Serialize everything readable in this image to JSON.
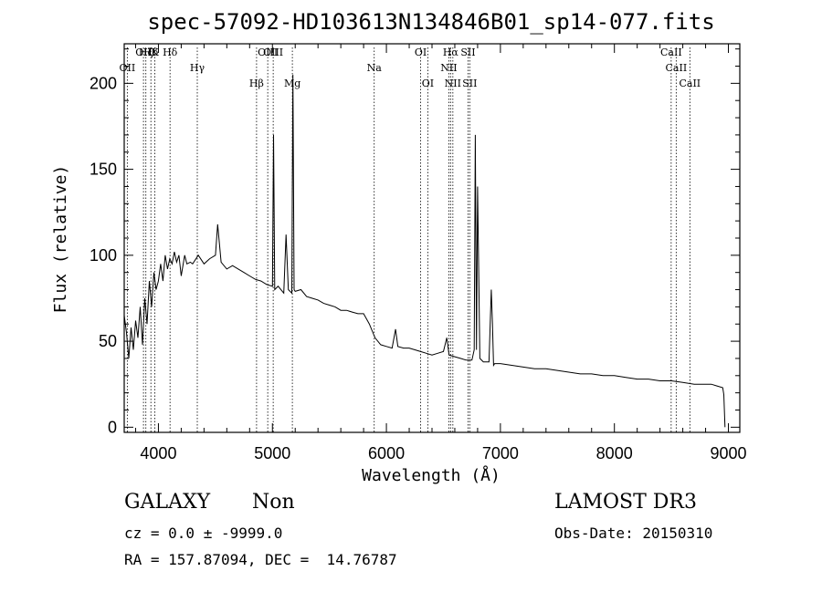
{
  "chart_data": {
    "type": "line",
    "title": "spec-57092-HD103613N134846B01_sp14-077.fits",
    "xlabel": "Wavelength (Å)",
    "ylabel": "Flux (relative)",
    "xlim": [
      3700,
      9100
    ],
    "ylim": [
      -3,
      223
    ],
    "xticks": [
      4000,
      5000,
      6000,
      7000,
      8000,
      9000
    ],
    "yticks": [
      0,
      50,
      100,
      150,
      200
    ],
    "series": [
      {
        "name": "spectrum",
        "x": [
          3700,
          3720,
          3740,
          3760,
          3780,
          3800,
          3820,
          3840,
          3860,
          3880,
          3900,
          3920,
          3940,
          3960,
          3980,
          4000,
          4020,
          4040,
          4060,
          4080,
          4100,
          4120,
          4140,
          4160,
          4180,
          4200,
          4230,
          4250,
          4280,
          4300,
          4350,
          4400,
          4450,
          4500,
          4520,
          4550,
          4600,
          4650,
          4700,
          4750,
          4800,
          4850,
          4900,
          4950,
          5000,
          5010,
          5020,
          5050,
          5100,
          5120,
          5140,
          5170,
          5180,
          5190,
          5200,
          5250,
          5300,
          5350,
          5400,
          5450,
          5500,
          5550,
          5600,
          5650,
          5700,
          5750,
          5800,
          5850,
          5900,
          5950,
          6000,
          6050,
          6080,
          6100,
          6150,
          6200,
          6250,
          6300,
          6350,
          6400,
          6450,
          6500,
          6530,
          6550,
          6600,
          6650,
          6700,
          6750,
          6770,
          6780,
          6790,
          6800,
          6820,
          6850,
          6900,
          6920,
          6930,
          6940,
          6950,
          7000,
          7100,
          7200,
          7300,
          7400,
          7500,
          7600,
          7700,
          7800,
          7900,
          8000,
          8100,
          8200,
          8300,
          8400,
          8500,
          8600,
          8700,
          8800,
          8850,
          8900,
          8950,
          8960,
          8970
        ],
        "values": [
          65,
          55,
          40,
          58,
          45,
          62,
          52,
          70,
          48,
          75,
          60,
          85,
          70,
          90,
          80,
          85,
          95,
          85,
          100,
          92,
          98,
          95,
          102,
          96,
          100,
          88,
          100,
          95,
          96,
          95,
          100,
          95,
          98,
          100,
          118,
          96,
          92,
          94,
          92,
          90,
          88,
          86,
          85,
          83,
          82,
          170,
          80,
          82,
          78,
          112,
          80,
          78,
          205,
          80,
          79,
          80,
          76,
          75,
          74,
          72,
          71,
          70,
          68,
          68,
          67,
          66,
          66,
          60,
          52,
          48,
          47,
          46,
          57,
          47,
          46,
          46,
          45,
          44,
          43,
          42,
          43,
          44,
          52,
          42,
          41,
          40,
          39,
          39,
          45,
          170,
          45,
          140,
          40,
          38,
          38,
          80,
          60,
          36,
          37,
          37,
          36,
          35,
          34,
          34,
          33,
          32,
          31,
          31,
          30,
          30,
          29,
          28,
          28,
          27,
          27,
          26,
          25,
          25,
          25,
          24,
          23,
          19,
          0
        ]
      }
    ],
    "line_markers": [
      {
        "x": 3727,
        "label": "OII",
        "row": 1
      },
      {
        "x": 3869,
        "label": "OII",
        "row": 0
      },
      {
        "x": 3890,
        "label": "Hζ",
        "row": 0
      },
      {
        "x": 3934,
        "label": "Hδ",
        "row": 0
      },
      {
        "x": 3968,
        "label": "K",
        "row": 0
      },
      {
        "x": 4102,
        "label": "Hδ",
        "row": 0
      },
      {
        "x": 4341,
        "label": "Hγ",
        "row": 1
      },
      {
        "x": 4861,
        "label": "Hβ",
        "row": 2
      },
      {
        "x": 4959,
        "label": "OIII",
        "row": 0
      },
      {
        "x": 5007,
        "label": "OIII",
        "row": 0
      },
      {
        "x": 5175,
        "label": "Mg",
        "row": 2
      },
      {
        "x": 5893,
        "label": "Na",
        "row": 1
      },
      {
        "x": 6300,
        "label": "OI",
        "row": 0
      },
      {
        "x": 6363,
        "label": "OI",
        "row": 2
      },
      {
        "x": 6548,
        "label": "NII",
        "row": 1
      },
      {
        "x": 6563,
        "label": "Hα",
        "row": 0
      },
      {
        "x": 6583,
        "label": "NII",
        "row": 2
      },
      {
        "x": 6716,
        "label": "SII",
        "row": 0
      },
      {
        "x": 6731,
        "label": "SII",
        "row": 2
      },
      {
        "x": 8498,
        "label": "CaII",
        "row": 0
      },
      {
        "x": 8542,
        "label": "CaII",
        "row": 1
      },
      {
        "x": 8662,
        "label": "CaII",
        "row": 2
      }
    ]
  },
  "info": {
    "object_class": "GALAXY",
    "subclass": "Non",
    "survey": "LAMOST DR3",
    "cz": "cz = 0.0 ± -9999.0",
    "obs_date": "Obs-Date: 20150310",
    "coords": "RA = 157.87094, DEC =  14.76787"
  }
}
